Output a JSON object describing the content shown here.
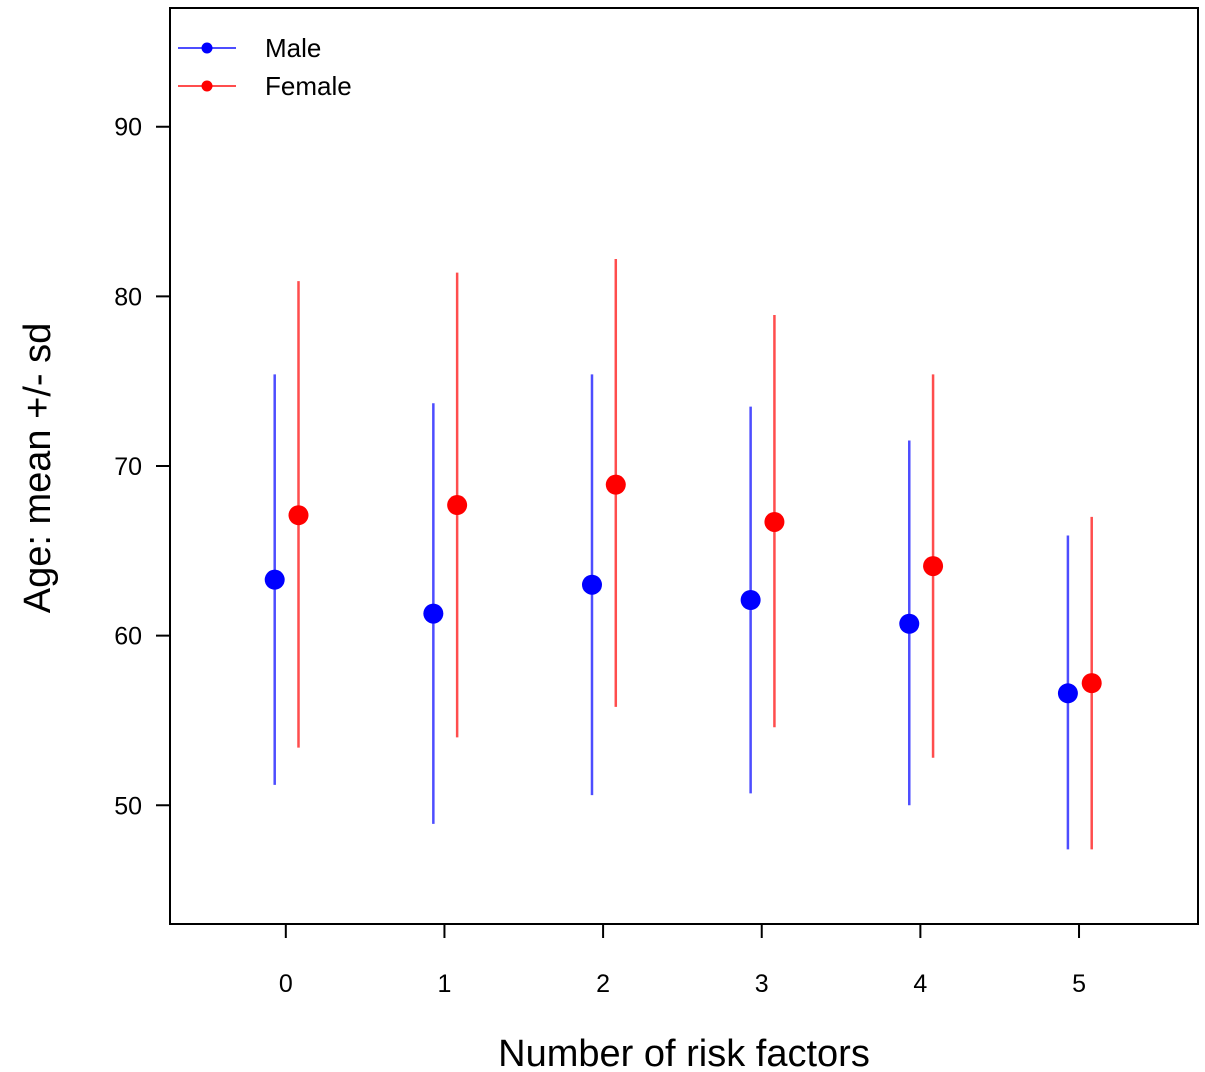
{
  "chart_data": {
    "type": "scatter",
    "subtype": "dot-and-error-bar",
    "xlabel": "Number of risk factors",
    "ylabel": "Age: mean +/- sd",
    "categories": [
      "0",
      "1",
      "2",
      "3",
      "4",
      "5"
    ],
    "x_ticks": [
      0,
      1,
      2,
      3,
      4,
      5
    ],
    "xlim": [
      -0.73,
      5.75
    ],
    "ylim": [
      43,
      97
    ],
    "y_ticks": [
      50,
      60,
      70,
      80,
      90
    ],
    "grid": false,
    "legend_position": "top-left",
    "series": [
      {
        "name": "Male",
        "color": "#0000ff",
        "errorbar_color": "#4d4dff",
        "offset": -0.07,
        "mean": [
          63.3,
          61.3,
          63.0,
          62.1,
          60.7,
          56.6
        ],
        "lower": [
          51.2,
          48.9,
          50.6,
          50.7,
          50.0,
          47.4
        ],
        "upper": [
          75.4,
          73.7,
          75.4,
          73.5,
          71.5,
          65.9
        ]
      },
      {
        "name": "Female",
        "color": "#ff0000",
        "errorbar_color": "#ff4d4d",
        "offset": 0.08,
        "mean": [
          67.1,
          67.7,
          68.9,
          66.7,
          64.1,
          57.2
        ],
        "lower": [
          53.4,
          54.0,
          55.8,
          54.6,
          52.8,
          47.4
        ],
        "upper": [
          80.9,
          81.4,
          82.2,
          78.9,
          75.4,
          67.0
        ]
      }
    ]
  }
}
